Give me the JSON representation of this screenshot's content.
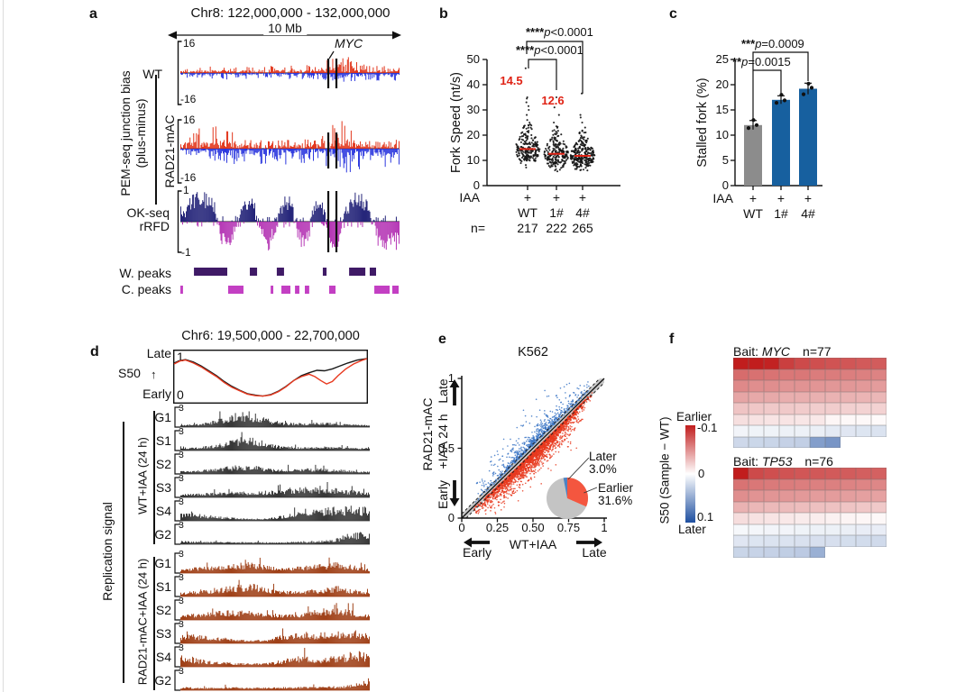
{
  "panels": {
    "a": "a",
    "b": "b",
    "c": "c",
    "d": "d",
    "e": "e",
    "f": "f"
  },
  "panel_a": {
    "title": "Chr8: 122,000,000 - 132,000,000",
    "scale_bar_label": "10 Mb",
    "gene_label": "MYC",
    "group_label_line1": "PEM-seq junction bias",
    "group_label_line2": "(plus-minus)",
    "track1_name": "WT",
    "track2_name": "RAD21-mAC",
    "track_ymax": "16",
    "track_ymin": "-16",
    "okseq_line1": "OK-seq",
    "okseq_line2": "rRFD",
    "okseq_ymax": "1",
    "okseq_ymin": "-1",
    "wpeaks_label": "W. peaks",
    "cpeaks_label": "C. peaks",
    "colors": {
      "plus": "#e13015",
      "minus": "#2531dd",
      "watson": "#1c1c74",
      "crick": "#b22fb2",
      "wpeak": "#3f1a66",
      "cpeak": "#c33fc3"
    },
    "myc_marks": [
      0.675,
      0.712
    ],
    "wpeak_spans": [
      [
        0.062,
        0.214
      ],
      [
        0.317,
        0.35
      ],
      [
        0.44,
        0.473
      ],
      [
        0.65,
        0.667
      ],
      [
        0.77,
        0.844
      ],
      [
        0.864,
        0.893
      ]
    ],
    "cpeak_spans": [
      [
        0.0,
        0.012
      ],
      [
        0.218,
        0.288
      ],
      [
        0.412,
        0.424
      ],
      [
        0.461,
        0.502
      ],
      [
        0.523,
        0.543
      ],
      [
        0.568,
        0.588
      ],
      [
        0.679,
        0.708
      ],
      [
        0.885,
        0.955
      ],
      [
        0.967,
        0.996
      ]
    ],
    "envelopes": {
      "wt_plus": [
        0.18,
        0.22,
        0.25,
        0.2,
        0.28,
        0.22,
        0.3,
        0.28,
        0.75,
        0.3,
        0.25,
        0.2
      ],
      "wt_minus": [
        0.15,
        0.2,
        0.22,
        0.25,
        0.2,
        0.22,
        0.25,
        0.22,
        0.35,
        0.3,
        0.28,
        0.3
      ],
      "r_plus": [
        0.35,
        0.7,
        0.75,
        0.4,
        0.3,
        0.3,
        0.3,
        0.45,
        1.0,
        0.3,
        0.25,
        0.3
      ],
      "r_minus": [
        0.2,
        0.25,
        0.45,
        0.6,
        0.5,
        0.55,
        0.5,
        0.45,
        0.85,
        0.7,
        0.6,
        0.65
      ],
      "rfd": [
        0.3,
        0.6,
        0.9,
        0.95,
        0.9,
        -0.5,
        -0.9,
        -0.3,
        0.8,
        0.9,
        -0.2,
        -0.9,
        -0.5,
        0.7,
        0.9,
        -0.6,
        -0.9,
        0.5,
        0.9,
        -0.8,
        -0.9,
        0.4,
        0.9,
        0.95,
        0.6,
        -0.5,
        -0.9,
        -0.8,
        -0.6
      ]
    }
  },
  "panel_b": {
    "ylabel": "Fork Speed (nt/s)",
    "iaa_label": "IAA",
    "plus": "+",
    "n_prefix": "n=",
    "sig1_stars": "****",
    "sig1_p": "p",
    "sig1_value": "<0.0001",
    "sig2_stars": "****",
    "sig2_p": "p",
    "sig2_value": "<0.0001"
  },
  "panel_c": {
    "ylabel": "Stalled fork (%)",
    "iaa_label": "IAA",
    "plus": "+",
    "sig_upper_stars": "***",
    "sig_upper_p": "p",
    "sig_upper_value": "=0.0009",
    "sig_lower_stars": "**",
    "sig_lower_p": "p",
    "sig_lower_value": "=0.0015"
  },
  "panel_d": {
    "title": "Chr6: 19,500,000 - 22,700,000",
    "s50_label": "S50",
    "late_label": "Late",
    "early_label": "Early",
    "s50_ymax": "1",
    "s50_ymin": "0",
    "group1_label": "WT+IAA (24 h)",
    "group2_label": "RAD21-mAC+IAA (24 h)",
    "side_label": "Replication signal",
    "track_scale": "3",
    "track_names": [
      "G1",
      "S1",
      "S2",
      "S3",
      "S4",
      "G2"
    ],
    "colors": {
      "wt": "#2f2f2f",
      "rad21": "#9c3a10",
      "s50_black": "#1a1a1a",
      "s50_red": "#e8391f"
    },
    "envelopes": {
      "wt": [
        [
          0.1,
          0.15,
          0.35,
          0.8,
          0.9,
          0.5,
          0.25,
          0.2,
          0.25,
          0.2,
          0.12,
          0.1
        ],
        [
          0.1,
          0.15,
          0.3,
          0.6,
          0.95,
          0.4,
          0.2,
          0.15,
          0.2,
          0.18,
          0.12,
          0.1
        ],
        [
          0.12,
          0.18,
          0.3,
          0.45,
          0.5,
          0.3,
          0.25,
          0.3,
          0.3,
          0.25,
          0.15,
          0.12
        ],
        [
          0.15,
          0.2,
          0.25,
          0.3,
          0.3,
          0.35,
          0.5,
          0.6,
          0.55,
          0.5,
          0.4,
          0.3
        ],
        [
          0.5,
          0.4,
          0.25,
          0.15,
          0.1,
          0.1,
          0.3,
          0.6,
          0.75,
          0.8,
          0.85,
          0.8
        ],
        [
          0.15,
          0.12,
          0.1,
          0.1,
          0.08,
          0.08,
          0.1,
          0.12,
          0.15,
          0.3,
          0.7,
          0.85
        ]
      ],
      "rad21": [
        [
          0.25,
          0.3,
          0.4,
          0.55,
          0.6,
          0.4,
          0.3,
          0.35,
          0.5,
          0.65,
          0.45,
          0.2
        ],
        [
          0.2,
          0.3,
          0.45,
          0.6,
          0.8,
          0.45,
          0.3,
          0.3,
          0.45,
          0.6,
          0.4,
          0.2
        ],
        [
          0.25,
          0.35,
          0.5,
          0.55,
          0.5,
          0.35,
          0.3,
          0.35,
          0.6,
          0.9,
          0.5,
          0.25
        ],
        [
          0.45,
          0.5,
          0.35,
          0.25,
          0.15,
          0.2,
          0.5,
          0.65,
          0.6,
          0.7,
          0.75,
          0.5
        ],
        [
          0.8,
          0.45,
          0.3,
          0.2,
          0.15,
          0.2,
          0.4,
          0.7,
          0.5,
          0.6,
          0.9,
          0.85
        ],
        [
          0.15,
          0.12,
          0.12,
          0.15,
          0.12,
          0.12,
          0.15,
          0.15,
          0.18,
          0.2,
          0.3,
          0.75
        ]
      ]
    }
  },
  "panel_e": {
    "title": "K562",
    "xlabel": "WT+IAA",
    "ylabel_line1": "RAD21-mAC",
    "ylabel_line2": "+IAA 24 h",
    "late_label": "Late",
    "early_label": "Early",
    "xticks": [
      "0",
      "0.25",
      "0.50",
      "0.75",
      "1"
    ],
    "yticks": [
      "0",
      "0.5",
      "1"
    ],
    "pie_later_label": "Later",
    "pie_later_pct": "3.0%",
    "pie_earlier_label": "Earlier",
    "pie_earlier_pct": "31.6%",
    "colors": {
      "red": "#e8391f",
      "blue": "#3b76c5",
      "pie_gray": "#c4c4c4",
      "pie_red": "#f4563f",
      "pie_blue": "#4c83c4"
    }
  },
  "panel_f": {
    "legend_earlier": "Earlier",
    "legend_later": "Later",
    "legend_max": "-0.1",
    "legend_mid": "0",
    "legend_min": "0.1",
    "legend_axis": "S50 (Sample − WT)",
    "bait_prefix": "Bait: ",
    "bait1_gene": "MYC",
    "bait1_n": "n=77",
    "bait2_gene": "TP53",
    "bait2_n": "n=76",
    "scale_colors": {
      "neg": "#c11d1d",
      "mid": "#ffffff",
      "pos": "#1e4fa0"
    }
  },
  "chart_data": {
    "b": {
      "type": "scatter",
      "subtype": "beeswarm",
      "ylabel": "Fork Speed (nt/s)",
      "ylim": [
        0,
        50
      ],
      "yticks": [
        0,
        10,
        20,
        30,
        40,
        50
      ],
      "x_condition_row": {
        "label": "IAA",
        "values": [
          "+",
          "+",
          "+"
        ]
      },
      "groups": [
        {
          "name": "WT",
          "n": "217",
          "median": 14.5,
          "median_label": "14.5",
          "outliers": [
            46.5,
            35,
            34.5,
            33,
            31.5,
            30,
            28,
            26,
            25
          ]
        },
        {
          "name": "1#",
          "n": "222",
          "median": 12.6,
          "median_label": "12.6",
          "outliers": [
            35,
            31,
            28,
            25,
            23.5,
            22
          ]
        },
        {
          "name": "4#",
          "n": "265",
          "median": 11.8,
          "median_label": "",
          "outliers": [
            36.5,
            28,
            27,
            25,
            23
          ]
        }
      ],
      "comparisons": [
        {
          "from": "WT",
          "to": "1#",
          "label": "****p<0.0001"
        },
        {
          "from": "WT",
          "to": "4#",
          "label": "****p<0.0001"
        }
      ]
    },
    "c": {
      "type": "bar",
      "ylabel": "Stalled fork (%)",
      "ylim": [
        0,
        25
      ],
      "yticks": [
        0,
        5,
        10,
        15,
        20,
        25
      ],
      "x_condition_row": {
        "label": "IAA",
        "values": [
          "+",
          "+",
          "+"
        ]
      },
      "categories": [
        "WT",
        "1#",
        "4#"
      ],
      "values": [
        12.0,
        17.0,
        19.2
      ],
      "errors": [
        0.9,
        0.8,
        1.1
      ],
      "points": [
        [
          11.4,
          12.0,
          13.0
        ],
        [
          16.4,
          16.9,
          18.0
        ],
        [
          18.1,
          19.4,
          20.2
        ]
      ],
      "bar_colors": [
        "#8c8c8c",
        "#17609f",
        "#17609f"
      ],
      "comparisons": [
        {
          "from": "WT",
          "to": "1#",
          "label": "**p=0.0015"
        },
        {
          "from": "WT",
          "to": "4#",
          "label": "***p=0.0009"
        }
      ]
    },
    "d_s50": {
      "type": "line",
      "title": "Chr6: 19,500,000 - 22,700,000",
      "ylim": [
        0,
        1
      ],
      "series": [
        {
          "name": "WT+IAA",
          "color": "#1a1a1a",
          "points": [
            [
              0,
              0.78
            ],
            [
              0.03,
              0.83
            ],
            [
              0.06,
              0.85
            ],
            [
              0.1,
              0.8
            ],
            [
              0.14,
              0.72
            ],
            [
              0.18,
              0.62
            ],
            [
              0.22,
              0.52
            ],
            [
              0.26,
              0.4
            ],
            [
              0.3,
              0.3
            ],
            [
              0.34,
              0.22
            ],
            [
              0.38,
              0.15
            ],
            [
              0.42,
              0.12
            ],
            [
              0.46,
              0.1
            ],
            [
              0.5,
              0.13
            ],
            [
              0.54,
              0.2
            ],
            [
              0.58,
              0.3
            ],
            [
              0.62,
              0.42
            ],
            [
              0.66,
              0.52
            ],
            [
              0.7,
              0.58
            ],
            [
              0.74,
              0.63
            ],
            [
              0.78,
              0.62
            ],
            [
              0.82,
              0.66
            ],
            [
              0.86,
              0.72
            ],
            [
              0.9,
              0.78
            ],
            [
              0.95,
              0.84
            ],
            [
              1,
              0.87
            ]
          ]
        },
        {
          "name": "RAD21-mAC+IAA",
          "color": "#e8391f",
          "points": [
            [
              0,
              0.76
            ],
            [
              0.03,
              0.82
            ],
            [
              0.06,
              0.84
            ],
            [
              0.1,
              0.78
            ],
            [
              0.14,
              0.7
            ],
            [
              0.18,
              0.6
            ],
            [
              0.22,
              0.5
            ],
            [
              0.26,
              0.38
            ],
            [
              0.3,
              0.28
            ],
            [
              0.34,
              0.21
            ],
            [
              0.38,
              0.14
            ],
            [
              0.42,
              0.11
            ],
            [
              0.46,
              0.1
            ],
            [
              0.5,
              0.12
            ],
            [
              0.54,
              0.19
            ],
            [
              0.58,
              0.29
            ],
            [
              0.62,
              0.42
            ],
            [
              0.66,
              0.5
            ],
            [
              0.7,
              0.55
            ],
            [
              0.73,
              0.5
            ],
            [
              0.76,
              0.42
            ],
            [
              0.79,
              0.35
            ],
            [
              0.82,
              0.4
            ],
            [
              0.85,
              0.52
            ],
            [
              0.89,
              0.66
            ],
            [
              0.93,
              0.76
            ],
            [
              0.97,
              0.83
            ],
            [
              1,
              0.87
            ]
          ]
        }
      ]
    },
    "e": {
      "type": "scatter",
      "title": "K562",
      "xlabel": "WT+IAA",
      "ylabel": "RAD21-mAC +IAA 24 h",
      "xlim": [
        0,
        1
      ],
      "ylim": [
        0,
        1
      ],
      "diagonal_band": 0.031,
      "pie": {
        "later_pct": 3.0,
        "earlier_pct": 31.6,
        "unchanged_pct": 65.4
      }
    },
    "f": {
      "type": "heatmap",
      "scale": {
        "label": "S50 (Sample − WT)",
        "min": -0.1,
        "max": 0.1,
        "min_meaning": "Earlier",
        "max_meaning": "Later"
      },
      "heatmaps": [
        {
          "bait": "MYC",
          "n": 77,
          "values": [
            [
              -0.1,
              -0.1,
              -0.098,
              -0.085,
              -0.08,
              -0.078,
              -0.076,
              -0.075,
              -0.073,
              -0.072
            ],
            [
              -0.065,
              -0.063,
              -0.062,
              -0.06,
              -0.06,
              -0.058,
              -0.058,
              -0.057,
              -0.056,
              -0.055
            ],
            [
              -0.052,
              -0.05,
              -0.05,
              -0.048,
              -0.048,
              -0.047,
              -0.046,
              -0.046,
              -0.045,
              -0.044
            ],
            [
              -0.04,
              -0.038,
              -0.038,
              -0.036,
              -0.036,
              -0.035,
              -0.034,
              -0.034,
              -0.033,
              -0.032
            ],
            [
              -0.026,
              -0.025,
              -0.024,
              -0.024,
              -0.023,
              -0.022,
              -0.022,
              -0.021,
              -0.02,
              -0.02
            ],
            [
              -0.014,
              -0.013,
              -0.012,
              -0.012,
              -0.011,
              -0.01,
              -0.004,
              -0.003,
              -0.003,
              -0.002
            ],
            [
              0.006,
              0.007,
              0.007,
              0.008,
              0.008,
              0.009,
              0.012,
              0.014,
              0.015,
              0.016
            ],
            [
              0.022,
              0.023,
              0.024,
              0.026,
              0.027,
              0.055,
              0.06
            ]
          ]
        },
        {
          "bait": "TP53",
          "n": 76,
          "values": [
            [
              -0.1,
              -0.08,
              -0.078,
              -0.076,
              -0.075,
              -0.074,
              -0.073,
              -0.072,
              -0.071,
              -0.07
            ],
            [
              -0.062,
              -0.06,
              -0.059,
              -0.058,
              -0.057,
              -0.056,
              -0.056,
              -0.055,
              -0.054,
              -0.053
            ],
            [
              -0.05,
              -0.048,
              -0.047,
              -0.046,
              -0.045,
              -0.044,
              -0.044,
              -0.043,
              -0.042,
              -0.041
            ],
            [
              -0.034,
              -0.032,
              -0.031,
              -0.03,
              -0.029,
              -0.028,
              -0.027,
              -0.026,
              -0.025,
              -0.024
            ],
            [
              -0.015,
              -0.013,
              -0.012,
              -0.01,
              -0.009,
              -0.008,
              -0.006,
              -0.005,
              -0.004,
              -0.003
            ],
            [
              0.004,
              0.005,
              0.006,
              0.006,
              0.007,
              0.008,
              0.008,
              0.009,
              0.01,
              0.01
            ],
            [
              0.014,
              0.015,
              0.016,
              0.016,
              0.017,
              0.018,
              0.018,
              0.019,
              0.02,
              0.021
            ],
            [
              0.024,
              0.025,
              0.026,
              0.028,
              0.03,
              0.045
            ]
          ]
        }
      ]
    }
  }
}
